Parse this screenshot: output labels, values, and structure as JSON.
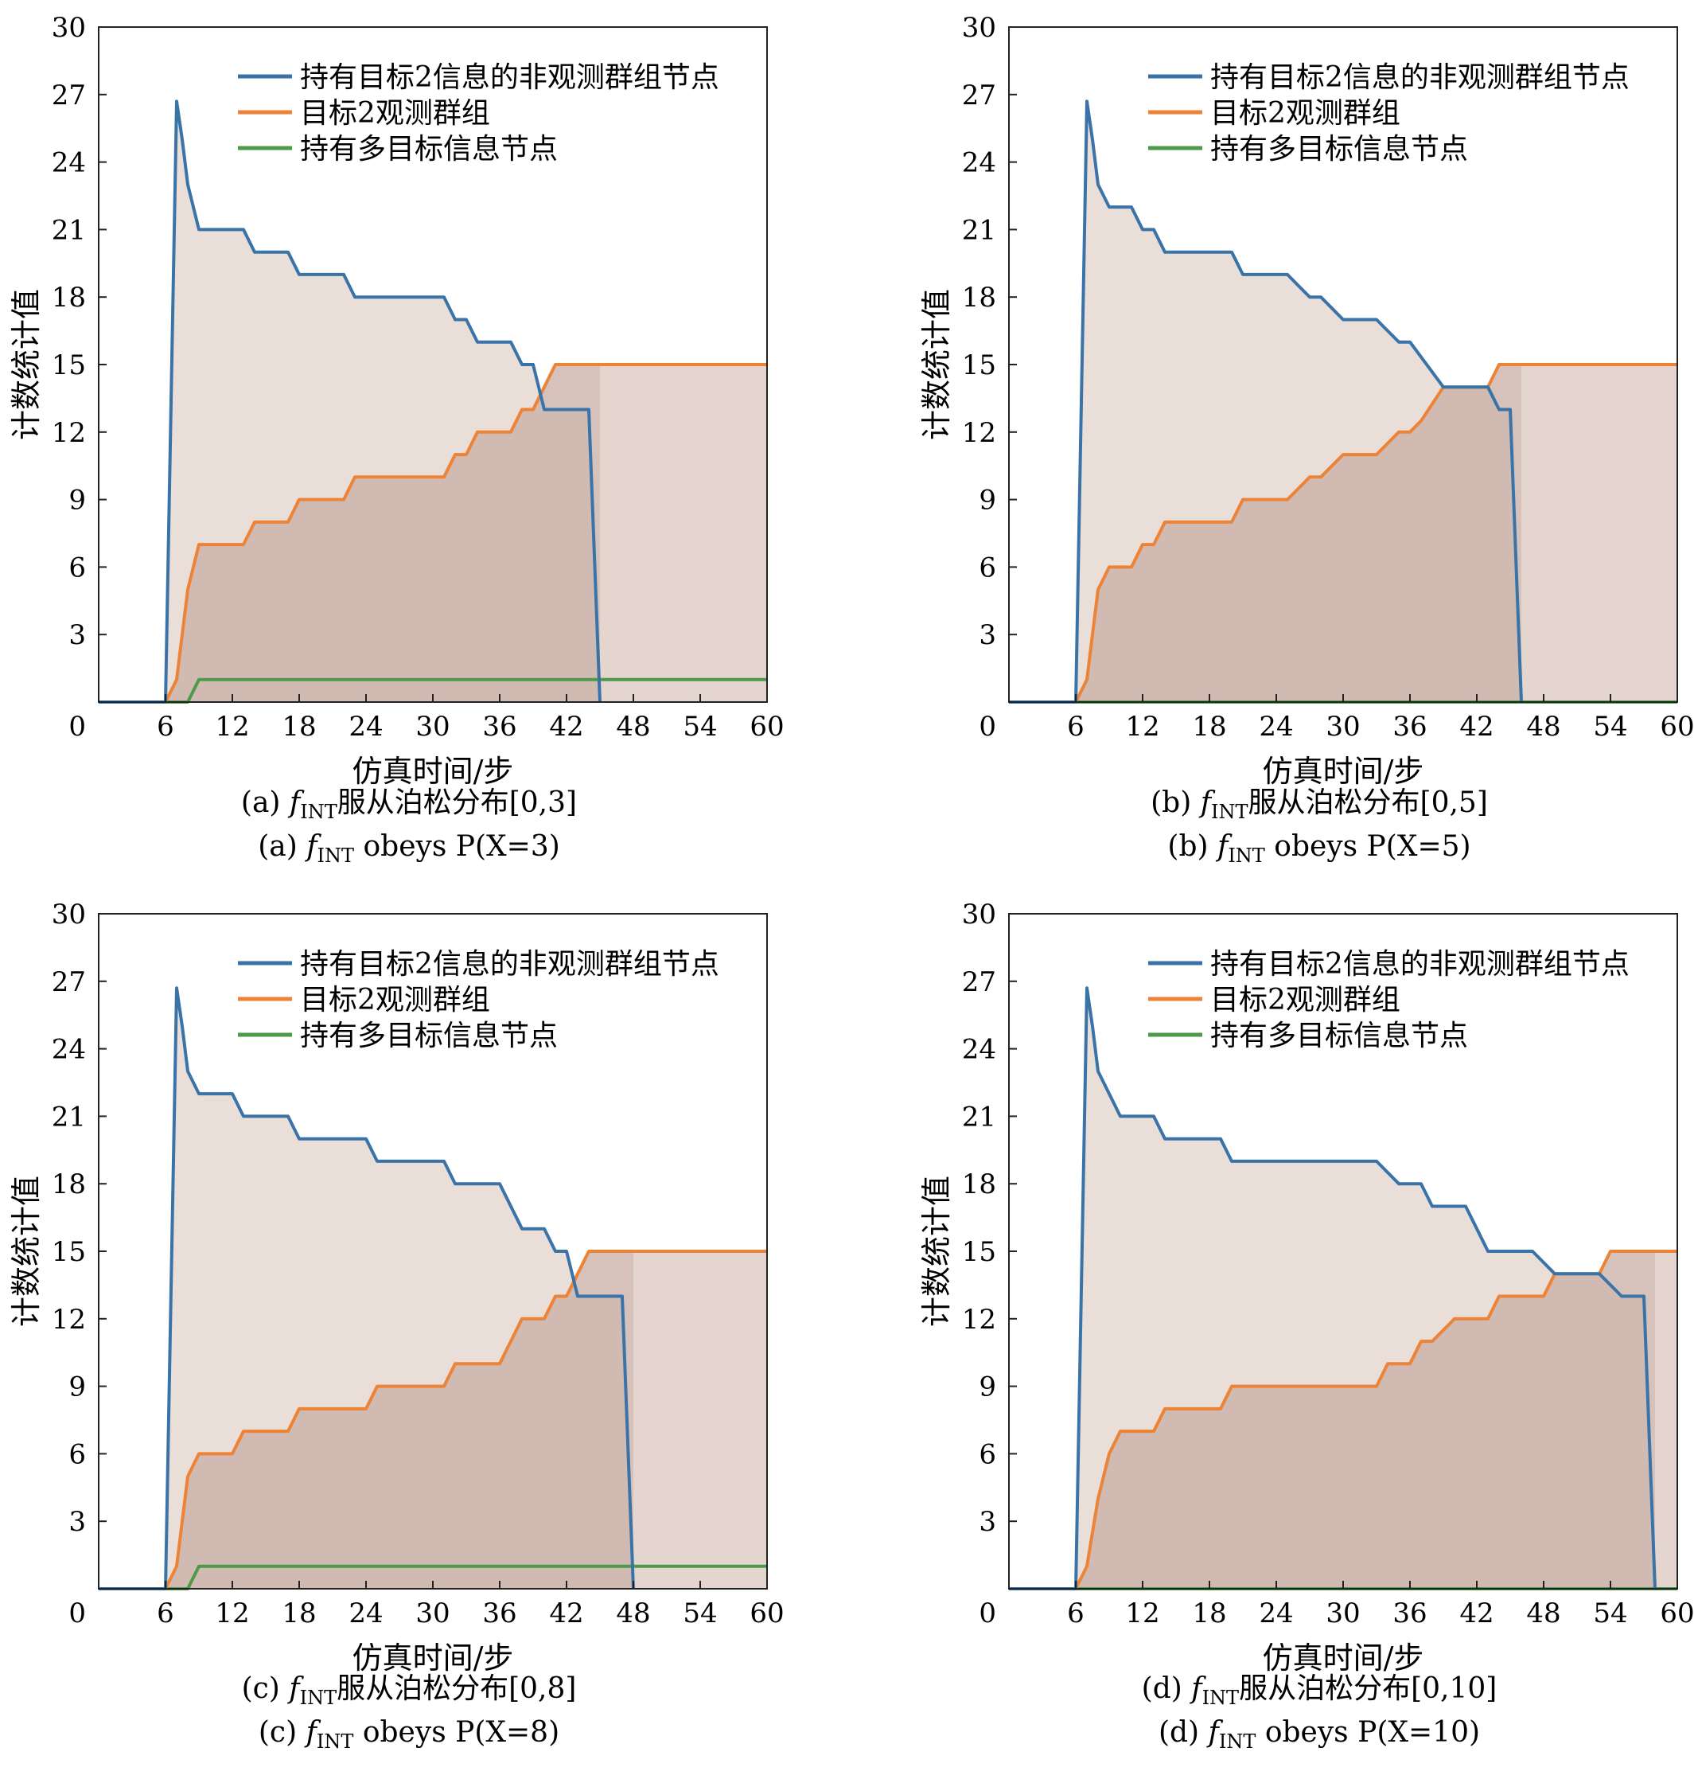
{
  "figure": {
    "panels": [
      {
        "caption_cn": {
          "prefix": "(a) ",
          "f": "f",
          "sub": "INT",
          "text": "服从泊松分布[0,3]"
        },
        "caption_en": {
          "prefix": "(a) ",
          "f": "f",
          "sub": "INT",
          "text": " obeys P(X=3)"
        }
      },
      {
        "caption_cn": {
          "prefix": "(b) ",
          "f": "f",
          "sub": "INT",
          "text": "服从泊松分布[0,5]"
        },
        "caption_en": {
          "prefix": "(b) ",
          "f": "f",
          "sub": "INT",
          "text": " obeys P(X=5)"
        }
      },
      {
        "caption_cn": {
          "prefix": "(c) ",
          "f": "f",
          "sub": "INT",
          "text": "服从泊松分布[0,8]"
        },
        "caption_en": {
          "prefix": "(c) ",
          "f": "f",
          "sub": "INT",
          "text": " obeys P(X=8)"
        }
      },
      {
        "caption_cn": {
          "prefix": "(d) ",
          "f": "f",
          "sub": "INT",
          "text": "服从泊松分布[0,10]"
        },
        "caption_en": {
          "prefix": "(d) ",
          "f": "f",
          "sub": "INT",
          "text": " obeys P(X=10)"
        }
      }
    ]
  },
  "chart_data": [
    {
      "type": "area",
      "xlabel": "仿真时间/步",
      "ylabel": "计数统计值",
      "xlim": [
        0,
        60
      ],
      "ylim": [
        0,
        30
      ],
      "xticks": [
        0,
        6,
        12,
        18,
        24,
        30,
        36,
        42,
        48,
        54,
        60
      ],
      "yticks": [
        0,
        3,
        6,
        9,
        12,
        15,
        18,
        21,
        24,
        27,
        30
      ],
      "legend": "top-right",
      "series": [
        {
          "name": "持有目标2信息的非观测群组节点",
          "color": "#3a73a8",
          "x": [
            0,
            6,
            7,
            7.5,
            8,
            9,
            13,
            14,
            17,
            18,
            22,
            23,
            31,
            32,
            33,
            34,
            37,
            38,
            39,
            40,
            41,
            44,
            45
          ],
          "y": [
            0,
            0,
            26.7,
            25,
            23,
            21,
            21,
            20,
            20,
            19,
            19,
            18,
            18,
            17,
            17,
            16,
            16,
            15,
            15,
            13,
            13,
            13,
            0
          ]
        },
        {
          "name": "目标2观测群组",
          "color": "#ec8336",
          "x": [
            6,
            7,
            8,
            9,
            13,
            14,
            17,
            18,
            22,
            23,
            31,
            32,
            33,
            34,
            37,
            38,
            39,
            40,
            41,
            60
          ],
          "y": [
            0,
            1,
            5,
            7,
            7,
            8,
            8,
            9,
            9,
            10,
            10,
            11,
            11,
            12,
            12,
            13,
            13,
            14,
            15,
            15
          ]
        },
        {
          "name": "持有多目标信息节点",
          "color": "#4e9a4a",
          "x": [
            0,
            8,
            9,
            60
          ],
          "y": [
            0,
            0,
            1,
            1
          ]
        }
      ]
    },
    {
      "type": "area",
      "xlabel": "仿真时间/步",
      "ylabel": "计数统计值",
      "xlim": [
        0,
        60
      ],
      "ylim": [
        0,
        30
      ],
      "xticks": [
        0,
        6,
        12,
        18,
        24,
        30,
        36,
        42,
        48,
        54,
        60
      ],
      "yticks": [
        0,
        3,
        6,
        9,
        12,
        15,
        18,
        21,
        24,
        27,
        30
      ],
      "legend": "top-right",
      "series": [
        {
          "name": "持有目标2信息的非观测群组节点",
          "color": "#3a73a8",
          "x": [
            0,
            6,
            7,
            7.5,
            8,
            9,
            11,
            12,
            13,
            14,
            20,
            21,
            25,
            26,
            27,
            28,
            29,
            30,
            33,
            34,
            35,
            36,
            39,
            40,
            43,
            44,
            45,
            46
          ],
          "y": [
            0,
            0,
            26.7,
            25,
            23,
            22,
            22,
            21,
            21,
            20,
            20,
            19,
            19,
            18.5,
            18,
            18,
            17.5,
            17,
            17,
            16.5,
            16,
            16,
            14,
            14,
            14,
            13,
            13,
            0
          ]
        },
        {
          "name": "目标2观测群组",
          "color": "#ec8336",
          "x": [
            6,
            7,
            8,
            9,
            11,
            12,
            13,
            14,
            20,
            21,
            25,
            26,
            27,
            28,
            29,
            30,
            33,
            34,
            35,
            36,
            37,
            39,
            40,
            43,
            44,
            60
          ],
          "y": [
            0,
            1,
            5,
            6,
            6,
            7,
            7,
            8,
            8,
            9,
            9,
            9.5,
            10,
            10,
            10.5,
            11,
            11,
            11.5,
            12,
            12,
            12.5,
            14,
            14,
            14,
            15,
            15
          ]
        },
        {
          "name": "持有多目标信息节点",
          "color": "#4e9a4a",
          "x": [
            0,
            60
          ],
          "y": [
            0,
            0
          ]
        }
      ]
    },
    {
      "type": "area",
      "xlabel": "仿真时间/步",
      "ylabel": "计数统计值",
      "xlim": [
        0,
        60
      ],
      "ylim": [
        0,
        30
      ],
      "xticks": [
        0,
        6,
        12,
        18,
        24,
        30,
        36,
        42,
        48,
        54,
        60
      ],
      "yticks": [
        0,
        3,
        6,
        9,
        12,
        15,
        18,
        21,
        24,
        27,
        30
      ],
      "legend": "top-right",
      "series": [
        {
          "name": "持有目标2信息的非观测群组节点",
          "color": "#3a73a8",
          "x": [
            0,
            6,
            7,
            7.5,
            8,
            9,
            12,
            13,
            17,
            18,
            24,
            25,
            29,
            31,
            32,
            36,
            38,
            40,
            41,
            42,
            43,
            47,
            48
          ],
          "y": [
            0,
            0,
            26.7,
            25,
            23,
            22,
            22,
            21,
            21,
            20,
            20,
            19,
            19,
            19,
            18,
            18,
            16,
            16,
            15,
            15,
            13,
            13,
            0
          ]
        },
        {
          "name": "目标2观测群组",
          "color": "#ec8336",
          "x": [
            6,
            7,
            8,
            9,
            12,
            13,
            17,
            18,
            24,
            25,
            31,
            32,
            36,
            38,
            40,
            41,
            42,
            43,
            44,
            60
          ],
          "y": [
            0,
            1,
            5,
            6,
            6,
            7,
            7,
            8,
            8,
            9,
            9,
            10,
            10,
            12,
            12,
            13,
            13,
            14,
            15,
            15
          ]
        },
        {
          "name": "持有多目标信息节点",
          "color": "#4e9a4a",
          "x": [
            0,
            8,
            9,
            60
          ],
          "y": [
            0,
            0,
            1,
            1
          ]
        }
      ]
    },
    {
      "type": "area",
      "xlabel": "仿真时间/步",
      "ylabel": "计数统计值",
      "xlim": [
        0,
        60
      ],
      "ylim": [
        0,
        30
      ],
      "xticks": [
        0,
        6,
        12,
        18,
        24,
        30,
        36,
        42,
        48,
        54,
        60
      ],
      "yticks": [
        0,
        3,
        6,
        9,
        12,
        15,
        18,
        21,
        24,
        27,
        30
      ],
      "legend": "top-right",
      "series": [
        {
          "name": "持有目标2信息的非观测群组节点",
          "color": "#3a73a8",
          "x": [
            0,
            6,
            7,
            7.5,
            8,
            9,
            10,
            13,
            14,
            19,
            20,
            33,
            35,
            37,
            38,
            41,
            42,
            43,
            47,
            49,
            53,
            54,
            55,
            57,
            58
          ],
          "y": [
            0,
            0,
            26.7,
            25,
            23,
            22,
            21,
            21,
            20,
            20,
            19,
            19,
            18,
            18,
            17,
            17,
            16,
            15,
            15,
            14,
            14,
            13.5,
            13,
            13,
            0
          ]
        },
        {
          "name": "目标2观测群组",
          "color": "#ec8336",
          "x": [
            6,
            7,
            8,
            9,
            10,
            13,
            14,
            19,
            20,
            33,
            34,
            36,
            37,
            38,
            40,
            43,
            44,
            48,
            49,
            53,
            54,
            60
          ],
          "y": [
            0,
            1,
            4,
            6,
            7,
            7,
            8,
            8,
            9,
            9,
            10,
            10,
            11,
            11,
            12,
            12,
            13,
            13,
            14,
            14,
            15,
            15
          ]
        },
        {
          "name": "持有多目标信息节点",
          "color": "#4e9a4a",
          "x": [
            0,
            60
          ],
          "y": [
            0,
            0
          ]
        }
      ]
    }
  ]
}
